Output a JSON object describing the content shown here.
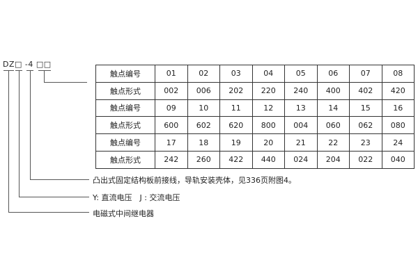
{
  "model_code": "DZ□ -4 □□",
  "table": [
    {
      "label": "触点编号",
      "cells": [
        "01",
        "02",
        "03",
        "04",
        "05",
        "06",
        "07",
        "08"
      ]
    },
    {
      "label": "触点形式",
      "cells": [
        "002",
        "006",
        "202",
        "220",
        "240",
        "400",
        "402",
        "420"
      ]
    },
    {
      "label": "触点编号",
      "cells": [
        "09",
        "10",
        "11",
        "12",
        "13",
        "14",
        "15",
        "16"
      ]
    },
    {
      "label": "触点形式",
      "cells": [
        "600",
        "602",
        "620",
        "800",
        "004",
        "060",
        "062",
        "080"
      ]
    },
    {
      "label": "触点编号",
      "cells": [
        "17",
        "18",
        "19",
        "20",
        "21",
        "22",
        "23",
        "24"
      ]
    },
    {
      "label": "触点形式",
      "cells": [
        "242",
        "260",
        "422",
        "440",
        "024",
        "204",
        "022",
        "040"
      ]
    }
  ],
  "notes": [
    "凸出式固定结构板前接线，导轨安装壳体，见336页附图4。",
    "Y: 直流电压　J : 交流电压",
    "电磁式中间继电器"
  ]
}
